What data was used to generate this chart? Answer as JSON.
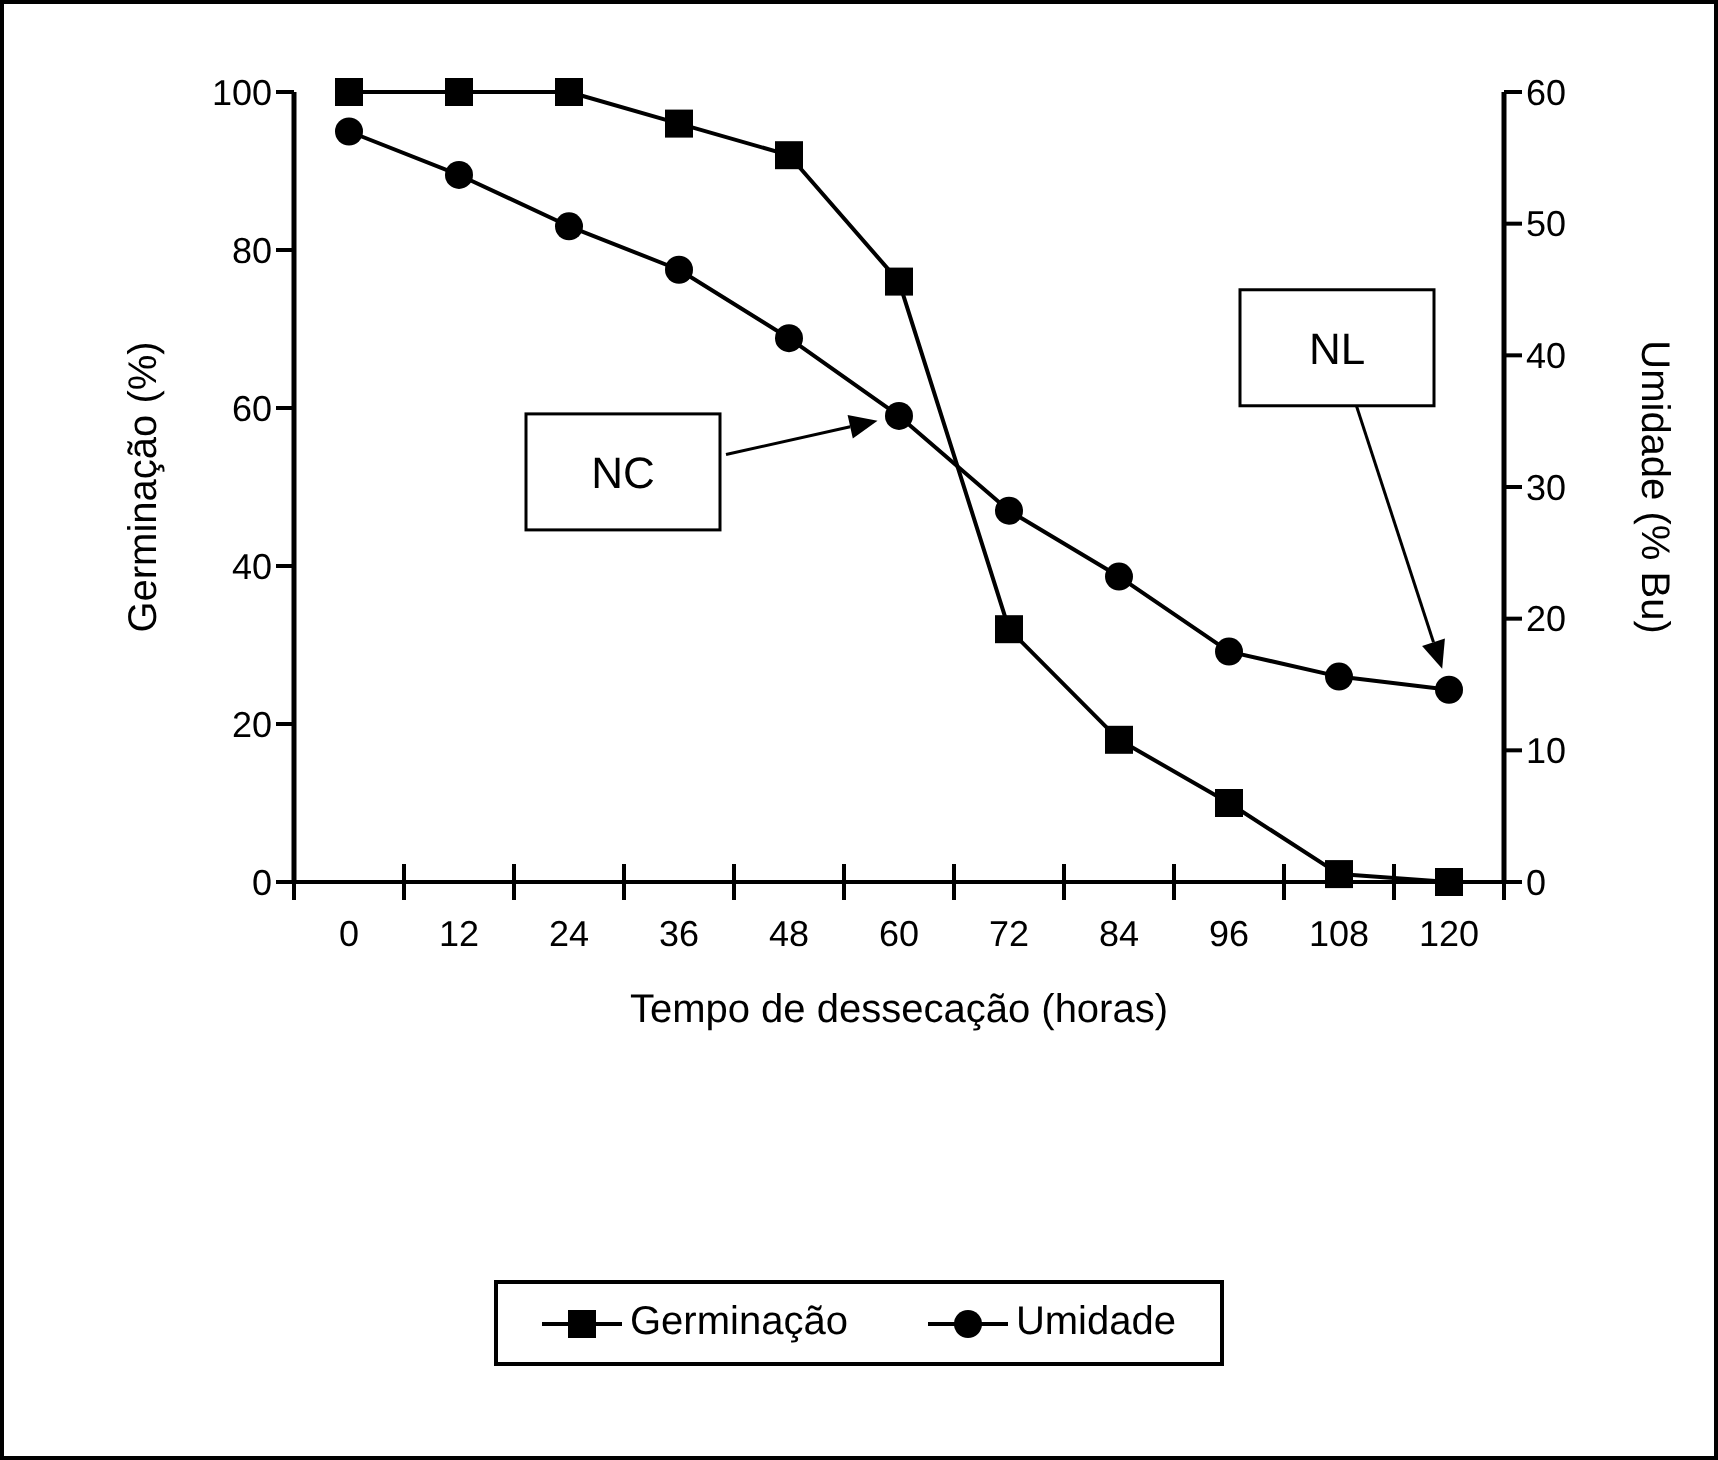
{
  "chart_data": {
    "type": "line",
    "xlabel": "Tempo de dessecação (horas)",
    "ylabel": "Germinação (%)",
    "y2label": "Umidade (% Bu)",
    "categories": [
      "0",
      "12",
      "24",
      "36",
      "48",
      "60",
      "72",
      "84",
      "96",
      "108",
      "120"
    ],
    "series": [
      {
        "name": "Germinação",
        "color": "#000000",
        "marker": "square",
        "values": [
          100,
          100,
          100,
          96,
          92,
          76,
          32,
          18,
          10,
          1,
          0
        ]
      },
      {
        "name": "Umidade",
        "color": "#000000",
        "marker": "circle",
        "axis": "y2",
        "values": [
          57,
          53.7,
          49.8,
          46.5,
          41.3,
          35.4,
          28.2,
          23.2,
          17.5,
          15.6,
          14.6
        ]
      }
    ],
    "ylim": [
      0,
      100
    ],
    "yticks": [
      0,
      20,
      40,
      60,
      80,
      100
    ],
    "y2lim": [
      0,
      60
    ],
    "y2ticks": [
      0,
      10,
      20,
      30,
      40,
      50,
      60
    ],
    "grid": false,
    "legend": "bottom",
    "line_style": "solid",
    "annotations": [
      "NC",
      "NL"
    ]
  }
}
